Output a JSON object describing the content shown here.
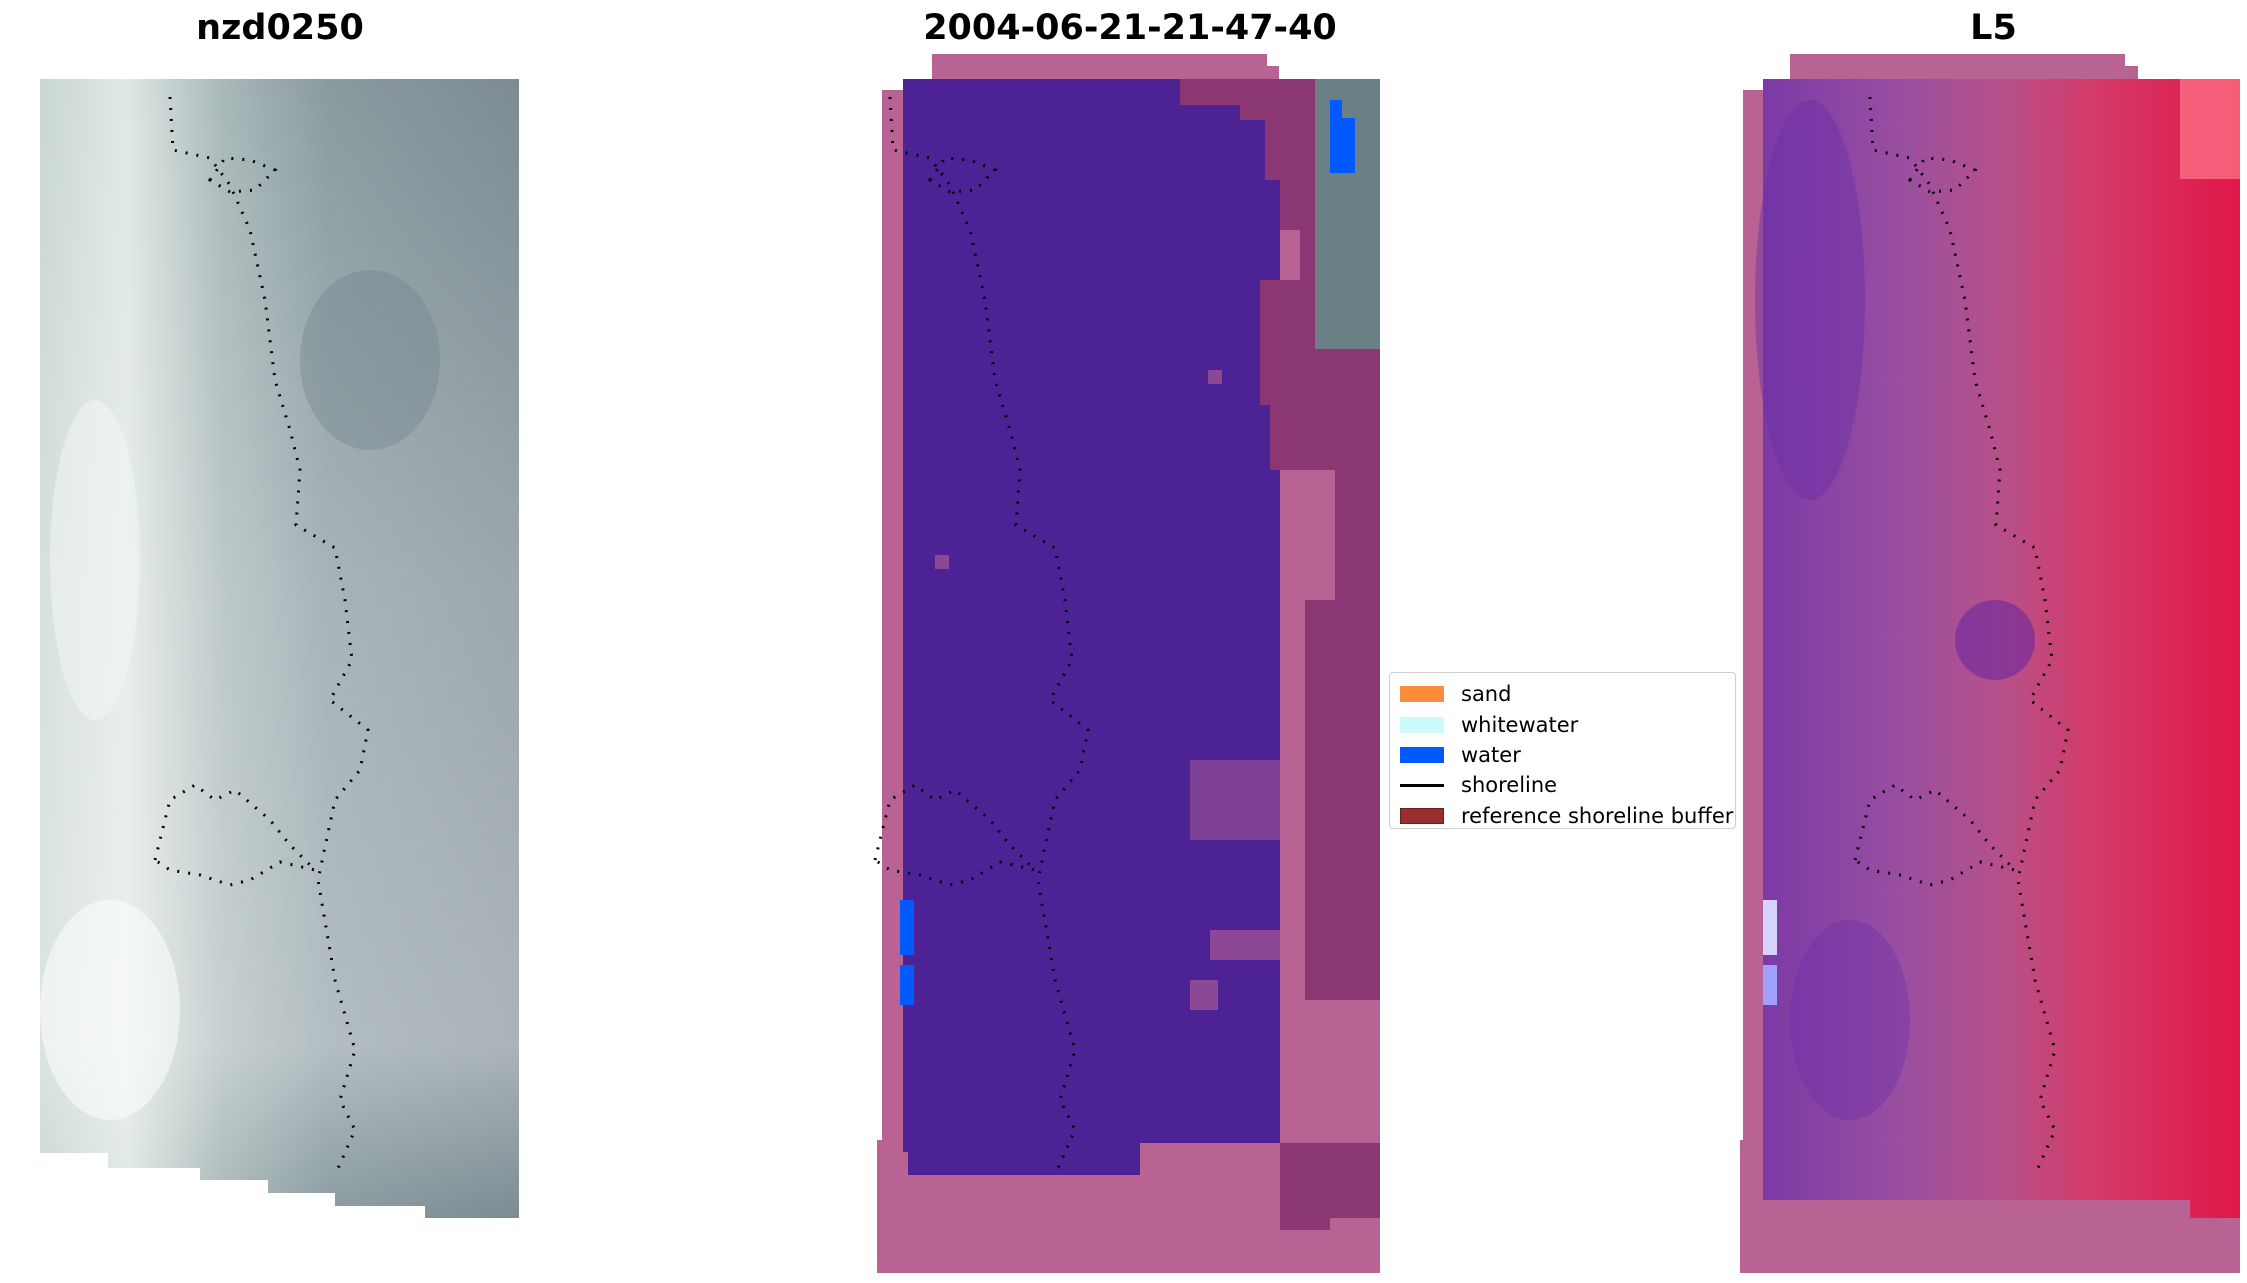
{
  "panels": [
    {
      "title": "nzd0250",
      "image": "rgb-satellite-image"
    },
    {
      "title": "2004-06-21-21-47-40",
      "image": "classified-image"
    },
    {
      "title": "L5",
      "image": "index-image"
    }
  ],
  "legend": {
    "items": [
      {
        "label": "sand",
        "color": "#ff8c3a",
        "kind": "patch"
      },
      {
        "label": "whitewater",
        "color": "#ccfbfb",
        "kind": "patch"
      },
      {
        "label": "water",
        "color": "#005aff",
        "kind": "patch"
      },
      {
        "label": "shoreline",
        "color": "#000000",
        "kind": "line"
      },
      {
        "label": "reference shoreline buffer",
        "color": "#9a2e2e",
        "kind": "patch"
      }
    ]
  },
  "colors": {
    "buffer_overlay": "#b86394",
    "class_background": "#4d2294",
    "shoreline": "#000000"
  }
}
